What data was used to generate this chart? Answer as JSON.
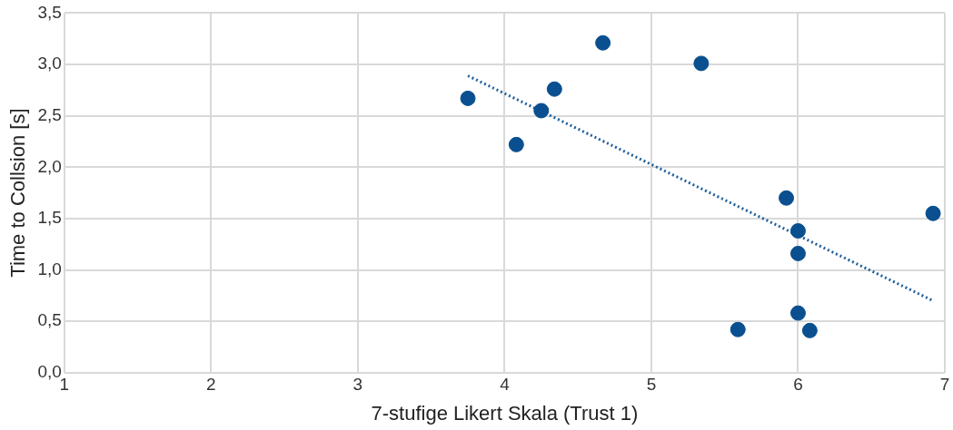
{
  "chart_data": {
    "type": "scatter",
    "xlabel": "7-stufige Likert Skala (Trust 1)",
    "ylabel": "Time to Collsion [s]",
    "xlim": [
      1,
      7
    ],
    "xticks": [
      1,
      2,
      3,
      4,
      5,
      6,
      7
    ],
    "ylim": [
      0,
      3.5
    ],
    "yticks": [
      {
        "value": 0,
        "label": "0,0"
      },
      {
        "value": 0.5,
        "label": "0,5"
      },
      {
        "value": 1,
        "label": "1,0"
      },
      {
        "value": 1.5,
        "label": "1,5"
      },
      {
        "value": 2,
        "label": "2,0"
      },
      {
        "value": 2.5,
        "label": "2,5"
      },
      {
        "value": 3,
        "label": "3,0"
      },
      {
        "value": 3.5,
        "label": "3,5"
      }
    ],
    "grid": true,
    "legend": false,
    "marker": "circle",
    "series": [
      {
        "type": "scatter",
        "color": "#0a4f8f",
        "x": [
          3.75,
          4.08,
          4.25,
          4.34,
          4.67,
          5.34,
          5.92,
          6.0,
          6.0,
          6.92,
          6.0,
          5.59,
          6.08
        ],
        "values": [
          2.67,
          2.22,
          2.55,
          2.76,
          3.21,
          3.01,
          1.7,
          1.38,
          1.16,
          1.55,
          0.58,
          0.42,
          0.41
        ]
      },
      {
        "type": "line",
        "color": "#1f5f9e",
        "line_style": "dotted",
        "marker": "none",
        "x": [
          3.75,
          6.92
        ],
        "values": [
          2.89,
          0.7
        ]
      }
    ]
  }
}
